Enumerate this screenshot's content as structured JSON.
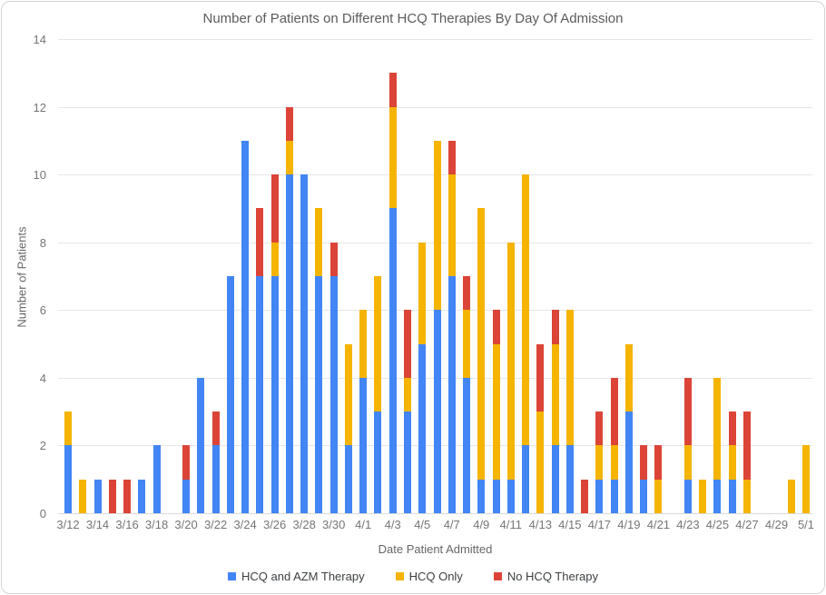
{
  "chart_data": {
    "type": "bar",
    "stacked": true,
    "title": "Number of Patients on Different HCQ Therapies By Day Of Admission",
    "xlabel": "Date Patient Admitted",
    "ylabel": "Number of Patients",
    "ylim": [
      0,
      14
    ],
    "yticks": [
      0,
      2,
      4,
      6,
      8,
      10,
      12,
      14
    ],
    "grid": "horizontal",
    "legend_position": "bottom",
    "x_tick_every": 2,
    "categories": [
      "3/12",
      "3/13",
      "3/14",
      "3/15",
      "3/16",
      "3/17",
      "3/18",
      "3/19",
      "3/20",
      "3/21",
      "3/22",
      "3/23",
      "3/24",
      "3/25",
      "3/26",
      "3/27",
      "3/28",
      "3/29",
      "3/30",
      "3/31",
      "4/1",
      "4/2",
      "4/3",
      "4/4",
      "4/5",
      "4/6",
      "4/7",
      "4/8",
      "4/9",
      "4/10",
      "4/11",
      "4/12",
      "4/13",
      "4/14",
      "4/15",
      "4/16",
      "4/17",
      "4/18",
      "4/19",
      "4/20",
      "4/21",
      "4/22",
      "4/23",
      "4/24",
      "4/25",
      "4/26",
      "4/27",
      "4/28",
      "4/29",
      "4/30",
      "5/1"
    ],
    "series": [
      {
        "name": "HCQ and AZM Therapy",
        "key": "hcq-and-azm",
        "color": "#4285F4",
        "values": [
          2,
          0,
          1,
          0,
          0,
          1,
          2,
          0,
          1,
          4,
          2,
          7,
          11,
          7,
          7,
          10,
          10,
          7,
          7,
          2,
          4,
          3,
          9,
          3,
          5,
          6,
          7,
          4,
          1,
          1,
          1,
          2,
          0,
          2,
          2,
          0,
          1,
          1,
          3,
          1,
          0,
          0,
          1,
          0,
          1,
          1,
          0,
          0,
          0,
          0,
          0
        ]
      },
      {
        "name": "HCQ Only",
        "key": "hcq-only",
        "color": "#F4B400",
        "values": [
          1,
          1,
          0,
          0,
          0,
          0,
          0,
          0,
          0,
          0,
          0,
          0,
          0,
          0,
          1,
          1,
          0,
          2,
          0,
          3,
          2,
          4,
          3,
          1,
          3,
          5,
          3,
          2,
          8,
          4,
          7,
          8,
          3,
          3,
          4,
          0,
          1,
          1,
          2,
          0,
          1,
          0,
          1,
          1,
          3,
          1,
          1,
          0,
          0,
          1,
          2
        ]
      },
      {
        "name": "No HCQ Therapy",
        "key": "no-hcq",
        "color": "#DB4437",
        "values": [
          0,
          0,
          0,
          1,
          1,
          0,
          0,
          0,
          1,
          0,
          1,
          0,
          0,
          2,
          2,
          1,
          0,
          0,
          1,
          0,
          0,
          0,
          1,
          2,
          0,
          0,
          1,
          1,
          0,
          1,
          0,
          0,
          2,
          1,
          0,
          1,
          1,
          2,
          0,
          1,
          1,
          0,
          2,
          0,
          0,
          1,
          2,
          0,
          0,
          0,
          0
        ]
      }
    ]
  }
}
